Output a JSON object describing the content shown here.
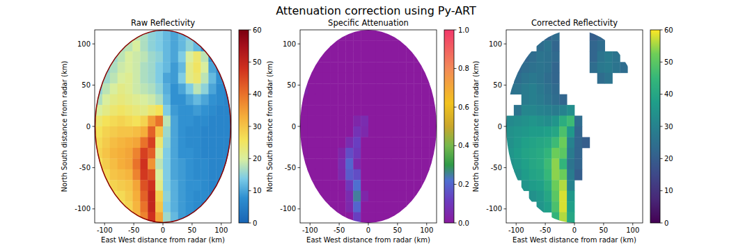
{
  "title": "Attenuation correction using Py-ART",
  "chart_data": [
    {
      "type": "heatmap",
      "title": "Raw Reflectivity",
      "x_label": "East West distance from radar (km)",
      "y_label": "North South distance from radar (km)",
      "xlim": [
        -117,
        117
      ],
      "ylim": [
        -117,
        117
      ],
      "xticks": [
        -100,
        -50,
        0,
        50,
        100
      ],
      "yticks": [
        -100,
        -50,
        0,
        50,
        100
      ],
      "radar_range": 117,
      "x_edges": [
        -117,
        -104,
        -91,
        -78,
        -65,
        -52,
        -39,
        -26,
        -13,
        0,
        13,
        26,
        39,
        52,
        65,
        78,
        91,
        104,
        117
      ],
      "y_edges": [
        117,
        104,
        91,
        78,
        65,
        52,
        39,
        26,
        13,
        0,
        -13,
        -26,
        -39,
        -52,
        -65,
        -78,
        -91,
        -104,
        -117
      ],
      "cells": [
        [
          null,
          null,
          null,
          null,
          16,
          18,
          17,
          15,
          14,
          12,
          10,
          12,
          14,
          10,
          null,
          null,
          null,
          null
        ],
        [
          null,
          null,
          null,
          17,
          18,
          20,
          17,
          15,
          14,
          12,
          10,
          12,
          15,
          12,
          8,
          null,
          null,
          null
        ],
        [
          null,
          null,
          16,
          18,
          20,
          19,
          18,
          16,
          15,
          12,
          10,
          14,
          20,
          24,
          18,
          8,
          null,
          null
        ],
        [
          null,
          15,
          17,
          19,
          20,
          19,
          17,
          16,
          14,
          12,
          9,
          12,
          22,
          25,
          20,
          10,
          7,
          null
        ],
        [
          14,
          16,
          18,
          20,
          21,
          19,
          17,
          16,
          14,
          10,
          9,
          14,
          22,
          24,
          18,
          12,
          8,
          6
        ],
        [
          15,
          18,
          20,
          22,
          21,
          19,
          18,
          17,
          15,
          11,
          8,
          10,
          14,
          18,
          15,
          10,
          7,
          6
        ],
        [
          17,
          20,
          22,
          23,
          22,
          21,
          20,
          19,
          17,
          12,
          8,
          8,
          10,
          12,
          10,
          8,
          7,
          6
        ],
        [
          20,
          22,
          24,
          25,
          24,
          23,
          22,
          24,
          26,
          14,
          9,
          8,
          8,
          9,
          8,
          7,
          6,
          6
        ],
        [
          24,
          26,
          27,
          28,
          27,
          26,
          28,
          35,
          40,
          18,
          10,
          8,
          8,
          7,
          7,
          6,
          6,
          6
        ],
        [
          26,
          28,
          29,
          30,
          30,
          31,
          33,
          42,
          30,
          16,
          10,
          8,
          7,
          7,
          6,
          6,
          6,
          6
        ],
        [
          27,
          29,
          31,
          32,
          33,
          34,
          40,
          46,
          24,
          15,
          10,
          8,
          7,
          7,
          6,
          6,
          6,
          6
        ],
        [
          28,
          30,
          32,
          33,
          34,
          38,
          46,
          42,
          20,
          14,
          10,
          8,
          8,
          7,
          6,
          6,
          6,
          6
        ],
        [
          26,
          29,
          31,
          33,
          34,
          40,
          48,
          36,
          18,
          14,
          10,
          9,
          8,
          7,
          7,
          6,
          6,
          6
        ],
        [
          24,
          27,
          30,
          31,
          32,
          38,
          47,
          44,
          20,
          14,
          10,
          9,
          8,
          7,
          7,
          6,
          6,
          6
        ],
        [
          null,
          25,
          28,
          29,
          30,
          34,
          44,
          48,
          22,
          14,
          11,
          9,
          8,
          8,
          7,
          6,
          6,
          null
        ],
        [
          null,
          null,
          26,
          27,
          29,
          33,
          42,
          50,
          28,
          15,
          11,
          9,
          8,
          7,
          7,
          6,
          null,
          null
        ],
        [
          null,
          null,
          null,
          26,
          28,
          32,
          40,
          50,
          30,
          14,
          11,
          9,
          8,
          7,
          6,
          null,
          null,
          null
        ],
        [
          null,
          null,
          null,
          null,
          28,
          32,
          38,
          48,
          34,
          16,
          12,
          9,
          8,
          7,
          null,
          null,
          null,
          null
        ]
      ],
      "colorbar_range": [
        0,
        60
      ],
      "colorbar_ticks": [
        0,
        10,
        20,
        30,
        40,
        50,
        60
      ]
    },
    {
      "type": "heatmap",
      "title": "Specific Attenuation",
      "x_label": "East West distance from radar (km)",
      "y_label": "North South distance from radar (km)",
      "xlim": [
        -117,
        117
      ],
      "ylim": [
        -117,
        117
      ],
      "xticks": [
        -100,
        -50,
        0,
        50,
        100
      ],
      "yticks": [
        -100,
        -50,
        0,
        50,
        100
      ],
      "radar_range": 117,
      "x_edges": [
        -117,
        -104,
        -91,
        -78,
        -65,
        -52,
        -39,
        -26,
        -13,
        0,
        13,
        26,
        39,
        52,
        65,
        78,
        91,
        104,
        117
      ],
      "y_edges": [
        117,
        104,
        91,
        78,
        65,
        52,
        39,
        26,
        13,
        0,
        -13,
        -26,
        -39,
        -52,
        -65,
        -78,
        -91,
        -104,
        -117
      ],
      "cells": [
        [
          null,
          null,
          null,
          null,
          0,
          0,
          0,
          0,
          0,
          0,
          0,
          0,
          0,
          0,
          null,
          null,
          null,
          null
        ],
        [
          null,
          null,
          null,
          0,
          0,
          0,
          0,
          0,
          0,
          0,
          0,
          0,
          0,
          0,
          0,
          null,
          null,
          null
        ],
        [
          null,
          null,
          0,
          0,
          0,
          0,
          0,
          0,
          0,
          0,
          0,
          0,
          0,
          0,
          0,
          0,
          null,
          null
        ],
        [
          null,
          0,
          0,
          0,
          0,
          0,
          0,
          0,
          0,
          0,
          0,
          0,
          0,
          0,
          0,
          0,
          0,
          null
        ],
        [
          0,
          0,
          0,
          0,
          0,
          0,
          0,
          0,
          0,
          0,
          0,
          0,
          0,
          0,
          0,
          0,
          0,
          0
        ],
        [
          0.03,
          0,
          0,
          0,
          0,
          0,
          0,
          0,
          0,
          0,
          0,
          0,
          0,
          0,
          0,
          0,
          0,
          0
        ],
        [
          0,
          0,
          0,
          0,
          0,
          0,
          0,
          0,
          0,
          0,
          0,
          0,
          0,
          0,
          0,
          0,
          0,
          0
        ],
        [
          0,
          0,
          0,
          0,
          0,
          0,
          0,
          0,
          0,
          0,
          0,
          0,
          0,
          0,
          0,
          0,
          0,
          0
        ],
        [
          0,
          0,
          0,
          0,
          0,
          0,
          0,
          0.04,
          0.06,
          0,
          0,
          0,
          0,
          0,
          0,
          0,
          0,
          0
        ],
        [
          0,
          0,
          0,
          0,
          0,
          0,
          0,
          0.08,
          0.05,
          0,
          0,
          0,
          0,
          0,
          0,
          0,
          0,
          0
        ],
        [
          0,
          0,
          0,
          0,
          0,
          0,
          0.06,
          0.12,
          0,
          0,
          0,
          0,
          0,
          0,
          0,
          0,
          0,
          0
        ],
        [
          0,
          0,
          0,
          0,
          0,
          0.04,
          0.15,
          0.1,
          0,
          0,
          0,
          0,
          0,
          0,
          0,
          0,
          0,
          0
        ],
        [
          0,
          0,
          0,
          0,
          0,
          0.06,
          0.2,
          0.05,
          0,
          0,
          0,
          0,
          0,
          0,
          0,
          0,
          0,
          0
        ],
        [
          0,
          0,
          0,
          0,
          0,
          0.05,
          0.18,
          0.15,
          0,
          0,
          0,
          0,
          0,
          0,
          0,
          0,
          0,
          0
        ],
        [
          null,
          0,
          0,
          0,
          0,
          0,
          0.1,
          0.22,
          0,
          0,
          0,
          0,
          0,
          0,
          0,
          0,
          0,
          null
        ],
        [
          null,
          null,
          0,
          0,
          0,
          0,
          0.06,
          0.25,
          0.04,
          0,
          0,
          0,
          0,
          0,
          0,
          0,
          null,
          null
        ],
        [
          null,
          null,
          null,
          0,
          0,
          0,
          0.05,
          0.2,
          0,
          0,
          0,
          0,
          0,
          0,
          0,
          null,
          null,
          null
        ],
        [
          null,
          null,
          null,
          null,
          0,
          0,
          0,
          0.12,
          0,
          0,
          0,
          0,
          0,
          0,
          null,
          null,
          null,
          null
        ]
      ],
      "colorbar_range": [
        0,
        1
      ],
      "colorbar_ticks": [
        {
          "value": 0,
          "label": "0.0"
        },
        {
          "value": 0.2,
          "label": "0.2"
        },
        {
          "value": 0.4,
          "label": "0.4"
        },
        {
          "value": 0.6,
          "label": "0.6"
        },
        {
          "value": 0.8,
          "label": "0.8"
        },
        {
          "value": 1,
          "label": "1.0"
        }
      ]
    },
    {
      "type": "heatmap",
      "title": "Corrected Reflectivity",
      "x_label": "East West distance from radar (km)",
      "y_label": "North South distance from radar (km)",
      "xlim": [
        -117,
        117
      ],
      "ylim": [
        -117,
        117
      ],
      "xticks": [
        -100,
        -50,
        0,
        50,
        100
      ],
      "yticks": [
        -100,
        -50,
        0,
        50,
        100
      ],
      "radar_range": 117,
      "x_edges": [
        -117,
        -104,
        -91,
        -78,
        -65,
        -52,
        -39,
        -26,
        -13,
        0,
        13,
        26,
        39,
        52,
        65,
        78,
        91,
        104,
        117
      ],
      "y_edges": [
        117,
        104,
        91,
        78,
        65,
        52,
        39,
        26,
        13,
        0,
        -13,
        -26,
        -39,
        -52,
        -65,
        -78,
        -91,
        -104,
        -117
      ],
      "cells": [
        [
          null,
          null,
          null,
          null,
          null,
          22,
          24,
          null,
          null,
          null,
          null,
          20,
          22,
          null,
          null,
          null,
          null,
          null
        ],
        [
          null,
          null,
          null,
          null,
          24,
          26,
          22,
          null,
          null,
          null,
          null,
          22,
          24,
          null,
          null,
          null,
          null,
          null
        ],
        [
          null,
          null,
          22,
          24,
          26,
          25,
          23,
          null,
          null,
          null,
          null,
          22,
          26,
          28,
          26,
          null,
          null,
          null
        ],
        [
          null,
          22,
          24,
          25,
          26,
          25,
          22,
          null,
          null,
          null,
          null,
          24,
          27,
          28,
          26,
          24,
          null,
          null
        ],
        [
          null,
          24,
          26,
          27,
          26,
          24,
          22,
          null,
          null,
          null,
          null,
          null,
          24,
          26,
          null,
          null,
          null,
          null
        ],
        [
          25,
          26,
          28,
          29,
          27,
          25,
          23,
          null,
          null,
          null,
          null,
          null,
          null,
          null,
          null,
          null,
          null,
          null
        ],
        [
          null,
          null,
          28,
          29,
          28,
          26,
          24,
          22,
          null,
          null,
          null,
          null,
          null,
          null,
          null,
          null,
          null,
          null
        ],
        [
          null,
          26,
          31,
          31,
          30,
          29,
          28,
          30,
          33,
          null,
          null,
          null,
          null,
          null,
          null,
          null,
          null,
          null
        ],
        [
          32,
          33,
          34,
          35,
          34,
          33,
          35,
          42,
          46,
          24,
          null,
          null,
          null,
          null,
          null,
          null,
          null,
          null
        ],
        [
          34,
          35,
          36,
          37,
          37,
          38,
          40,
          48,
          36,
          22,
          null,
          null,
          null,
          null,
          null,
          null,
          null,
          null
        ],
        [
          34,
          36,
          38,
          39,
          40,
          41,
          46,
          52,
          30,
          22,
          20,
          null,
          null,
          null,
          null,
          null,
          null,
          null
        ],
        [
          35,
          37,
          39,
          40,
          41,
          44,
          52,
          50,
          28,
          22,
          null,
          null,
          null,
          null,
          null,
          null,
          null,
          null
        ],
        [
          34,
          36,
          38,
          40,
          41,
          46,
          54,
          44,
          26,
          22,
          null,
          null,
          null,
          null,
          null,
          null,
          null,
          null
        ],
        [
          null,
          34,
          37,
          39,
          40,
          45,
          54,
          52,
          28,
          20,
          null,
          null,
          null,
          null,
          null,
          null,
          null,
          null
        ],
        [
          null,
          null,
          35,
          37,
          38,
          42,
          52,
          56,
          30,
          null,
          null,
          null,
          null,
          null,
          null,
          null,
          null,
          null
        ],
        [
          null,
          null,
          null,
          34,
          36,
          40,
          50,
          58,
          36,
          null,
          null,
          null,
          null,
          null,
          null,
          null,
          null,
          null
        ],
        [
          null,
          null,
          null,
          null,
          35,
          38,
          48,
          58,
          38,
          null,
          null,
          null,
          null,
          null,
          null,
          null,
          null,
          null
        ],
        [
          null,
          null,
          null,
          null,
          null,
          null,
          44,
          56,
          40,
          null,
          null,
          null,
          null,
          null,
          null,
          null,
          null,
          null
        ]
      ],
      "colorbar_range": [
        0,
        60
      ],
      "colorbar_ticks": [
        0,
        10,
        20,
        30,
        40,
        50,
        60
      ]
    }
  ]
}
